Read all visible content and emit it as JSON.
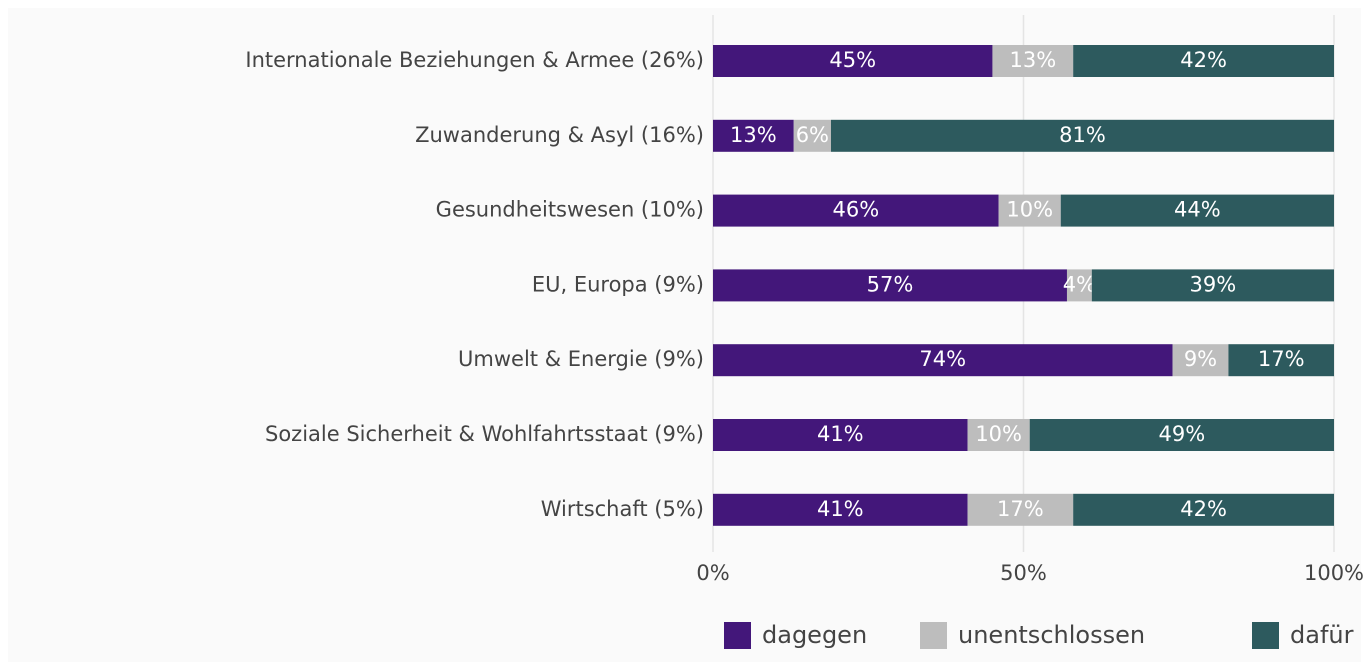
{
  "chart_data": {
    "type": "stacked_bar_horizontal",
    "categories": [
      "Internationale Beziehungen & Armee (26%)",
      "Zuwanderung & Asyl (16%)",
      "Gesundheitswesen (10%)",
      "EU, Europa (9%)",
      "Umwelt & Energie (9%)",
      "Soziale Sicherheit & Wohlfahrtsstaat (9%)",
      "Wirtschaft (5%)"
    ],
    "series": [
      {
        "name": "dagegen",
        "color": "#43177a",
        "values": [
          45,
          13,
          46,
          57,
          74,
          41,
          41
        ],
        "value_labels": [
          "45%",
          "13%",
          "46%",
          "57%",
          "74%",
          "41%",
          "41%"
        ]
      },
      {
        "name": "unentschlossen",
        "color": "#bdbdbd",
        "values": [
          13,
          6,
          10,
          4,
          9,
          10,
          17
        ],
        "value_labels": [
          "13%",
          "6%",
          "10%",
          "4%",
          "9%",
          "10%",
          "17%"
        ]
      },
      {
        "name": "dafür",
        "color": "#2d5a5e",
        "values": [
          42,
          81,
          44,
          39,
          17,
          49,
          42
        ],
        "value_labels": [
          "42%",
          "81%",
          "44%",
          "39%",
          "17%",
          "49%",
          "42%"
        ]
      }
    ],
    "xlim": [
      0,
      100
    ],
    "xticks": [
      {
        "value": 0,
        "label": "0%"
      },
      {
        "value": 50,
        "label": "50%"
      },
      {
        "value": 100,
        "label": "100%"
      }
    ],
    "grid": true,
    "legend": "bottom"
  }
}
